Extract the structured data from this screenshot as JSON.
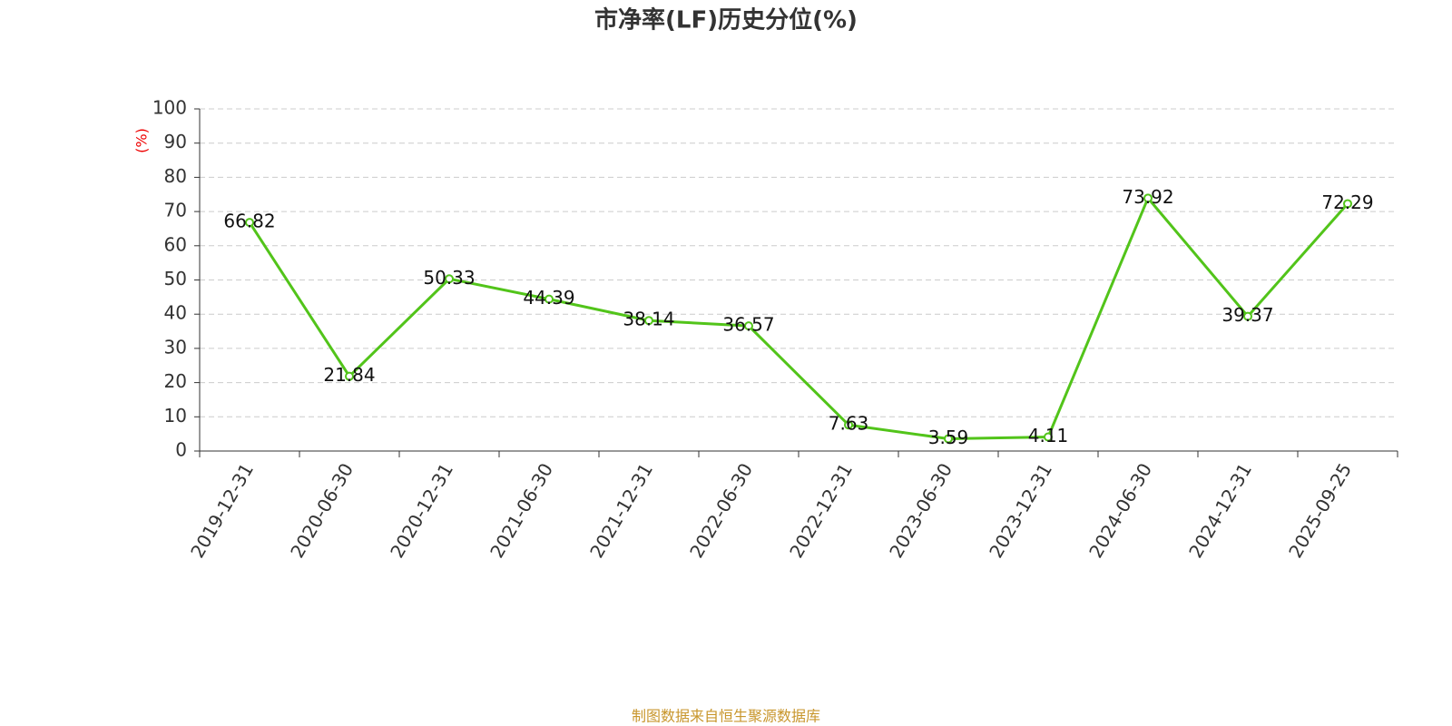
{
  "chart_data": {
    "type": "line",
    "title": "市净率(LF)历史分位(%)",
    "y_label": "(%)",
    "source": "制图数据来自恒生聚源数据库",
    "categories": [
      "2019-12-31",
      "2020-06-30",
      "2020-12-31",
      "2021-06-30",
      "2021-12-31",
      "2022-06-30",
      "2022-12-31",
      "2023-06-30",
      "2023-12-31",
      "2024-06-30",
      "2024-12-31",
      "2025-09-25"
    ],
    "values": [
      66.82,
      21.84,
      50.33,
      44.39,
      38.14,
      36.57,
      7.63,
      3.59,
      4.11,
      73.92,
      39.37,
      72.29
    ],
    "color": "#52c41a",
    "ylim": [
      0,
      100
    ],
    "yticks": [
      0,
      10,
      20,
      30,
      40,
      50,
      60,
      70,
      80,
      90,
      100
    ],
    "grid": true
  }
}
